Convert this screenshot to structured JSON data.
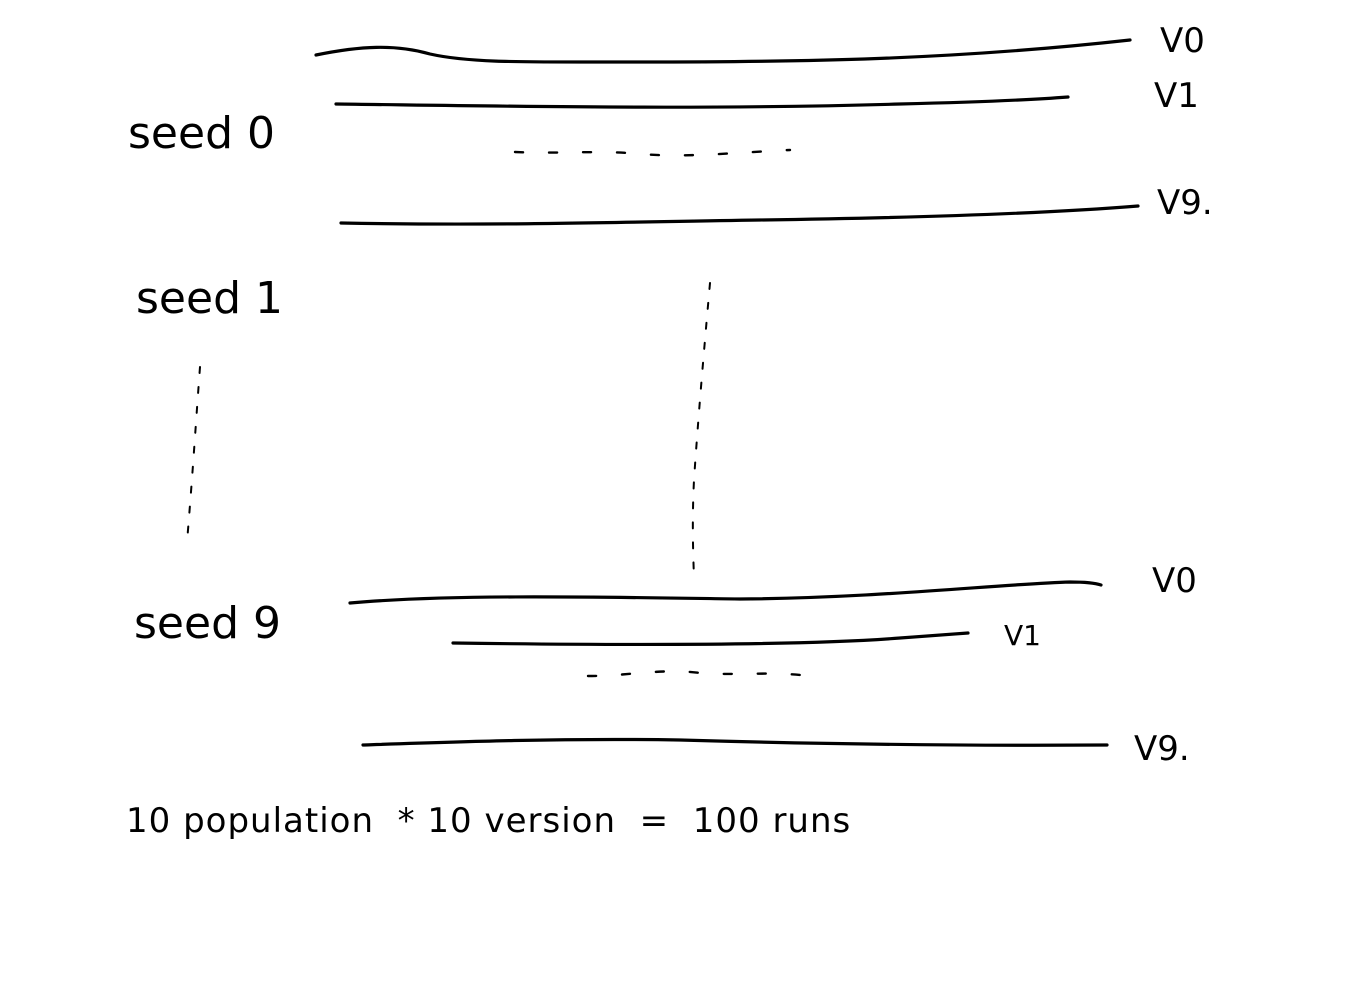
{
  "groups": [
    {
      "seed_label": "seed 0",
      "versions": [
        "V0",
        "V1",
        "V9."
      ]
    },
    {
      "seed_label": "seed 1"
    },
    {
      "seed_label": "seed 9",
      "versions": [
        "V0",
        "V1",
        "V9."
      ]
    }
  ],
  "formula": "10 population  * 10 version  =  100 runs"
}
